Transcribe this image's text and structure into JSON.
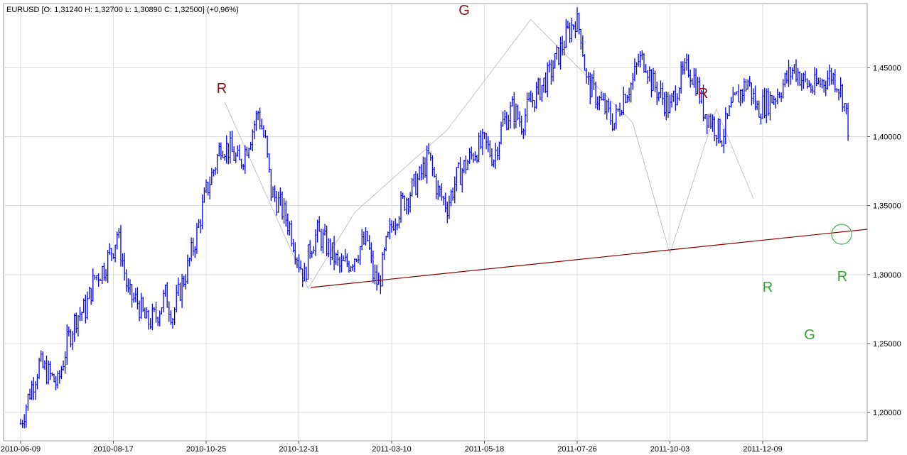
{
  "chart_data": {
    "type": "line",
    "symbol": "EURUSD",
    "info_text": "EURUSD [O: 1,31240  H: 1,32700  L: 1,30890  C: 1,32500] (+0,96%)",
    "ohlc": {
      "open": 1.3124,
      "high": 1.327,
      "low": 1.3089,
      "close": 1.325,
      "change_pct": "+0,96%"
    },
    "x_tick_labels": [
      "2010-06-09",
      "2010-08-17",
      "2010-10-25",
      "2010-12-31",
      "2011-03-10",
      "2011-05-18",
      "2011-07-26",
      "2011-10-03",
      "2011-12-09"
    ],
    "x_tick_index": [
      0,
      50,
      100,
      150,
      200,
      250,
      300,
      350,
      400
    ],
    "y_tick_labels": [
      "1,20000",
      "1,25000",
      "1,30000",
      "1,35000",
      "1,40000",
      "1,45000"
    ],
    "y_tick_values": [
      1.2,
      1.25,
      1.3,
      1.35,
      1.4,
      1.45
    ],
    "ylim": [
      1.1795,
      1.4965
    ],
    "xlim": [
      0,
      458
    ],
    "grid": true,
    "series": [
      {
        "color": "#0000ff",
        "points": [
          [
            0,
            1.192
          ],
          [
            5,
            1.215
          ],
          [
            10,
            1.235
          ],
          [
            15,
            1.228
          ],
          [
            20,
            1.22
          ],
          [
            25,
            1.25
          ],
          [
            30,
            1.27
          ],
          [
            35,
            1.275
          ],
          [
            40,
            1.298
          ],
          [
            45,
            1.305
          ],
          [
            48,
            1.315
          ],
          [
            50,
            1.32
          ],
          [
            52,
            1.33
          ],
          [
            55,
            1.31
          ],
          [
            58,
            1.285
          ],
          [
            63,
            1.28
          ],
          [
            68,
            1.265
          ],
          [
            73,
            1.27
          ],
          [
            78,
            1.285
          ],
          [
            82,
            1.27
          ],
          [
            85,
            1.285
          ],
          [
            90,
            1.305
          ],
          [
            95,
            1.33
          ],
          [
            100,
            1.36
          ],
          [
            105,
            1.38
          ],
          [
            108,
            1.395
          ],
          [
            113,
            1.39
          ],
          [
            118,
            1.38
          ],
          [
            121,
            1.39
          ],
          [
            125,
            1.405
          ],
          [
            128,
            1.418
          ],
          [
            132,
            1.395
          ],
          [
            135,
            1.36
          ],
          [
            140,
            1.35
          ],
          [
            145,
            1.335
          ],
          [
            150,
            1.31
          ],
          [
            153,
            1.298
          ],
          [
            156,
            1.32
          ],
          [
            160,
            1.33
          ],
          [
            163,
            1.325
          ],
          [
            168,
            1.315
          ],
          [
            172,
            1.305
          ],
          [
            178,
            1.31
          ],
          [
            183,
            1.32
          ],
          [
            187,
            1.325
          ],
          [
            190,
            1.3
          ],
          [
            193,
            1.292
          ],
          [
            197,
            1.32
          ],
          [
            201,
            1.34
          ],
          [
            205,
            1.35
          ],
          [
            210,
            1.36
          ],
          [
            215,
            1.37
          ],
          [
            220,
            1.385
          ],
          [
            225,
            1.36
          ],
          [
            230,
            1.35
          ],
          [
            235,
            1.37
          ],
          [
            240,
            1.38
          ],
          [
            245,
            1.39
          ],
          [
            250,
            1.395
          ],
          [
            255,
            1.385
          ],
          [
            260,
            1.41
          ],
          [
            265,
            1.42
          ],
          [
            270,
            1.41
          ],
          [
            275,
            1.425
          ],
          [
            280,
            1.435
          ],
          [
            285,
            1.445
          ],
          [
            290,
            1.46
          ],
          [
            295,
            1.475
          ],
          [
            299,
            1.485
          ],
          [
            302,
            1.475
          ],
          [
            305,
            1.44
          ],
          [
            310,
            1.43
          ],
          [
            315,
            1.42
          ],
          [
            320,
            1.41
          ],
          [
            325,
            1.43
          ],
          [
            330,
            1.44
          ],
          [
            333,
            1.455
          ],
          [
            337,
            1.455
          ],
          [
            340,
            1.44
          ],
          [
            345,
            1.43
          ],
          [
            350,
            1.42
          ],
          [
            355,
            1.44
          ],
          [
            360,
            1.45
          ],
          [
            364,
            1.44
          ],
          [
            368,
            1.42
          ],
          [
            373,
            1.41
          ],
          [
            378,
            1.4
          ],
          [
            383,
            1.42
          ],
          [
            387,
            1.43
          ],
          [
            392,
            1.44
          ],
          [
            397,
            1.42
          ],
          [
            402,
            1.425
          ],
          [
            407,
            1.43
          ],
          [
            412,
            1.44
          ],
          [
            417,
            1.45
          ],
          [
            422,
            1.44
          ],
          [
            427,
            1.435
          ],
          [
            432,
            1.44
          ],
          [
            437,
            1.445
          ],
          [
            440,
            1.44
          ],
          [
            443,
            1.43
          ],
          [
            447,
            1.4
          ]
        ]
      }
    ],
    "pivot_labels": [
      {
        "text": "R",
        "color": "#8b1010"
      },
      {
        "text": "G",
        "color": "#8b1010"
      },
      {
        "text": "R",
        "color": "#8b1010"
      },
      {
        "text": "R",
        "color": "#3aa03a"
      },
      {
        "text": "G",
        "color": "#3aa03a"
      },
      {
        "text": "R",
        "color": "#3aa03a"
      }
    ],
    "neckline_color": "#8b0000",
    "circle_color": "#4caf50"
  }
}
